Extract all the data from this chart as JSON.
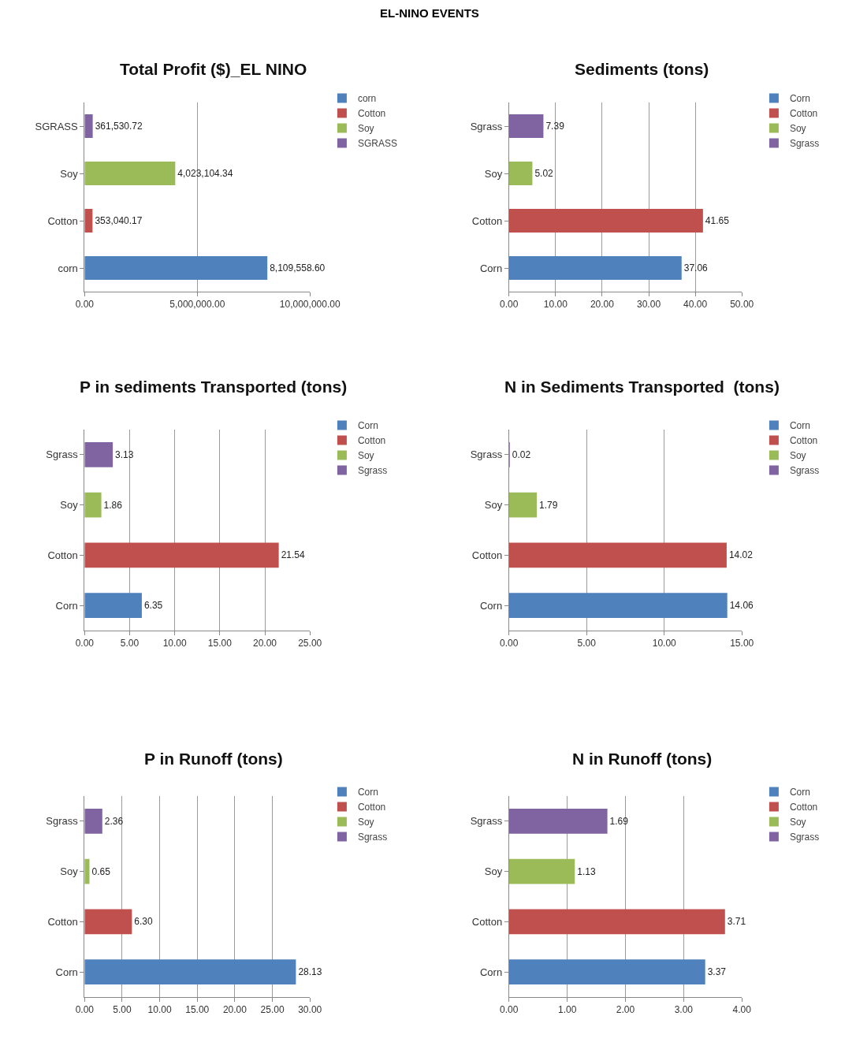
{
  "chart_data": [
    {
      "type": "bar",
      "orientation": "horizontal",
      "title": "Total Profit ($)_EL NINO",
      "annotations": [
        "EL-NINO EVENTS"
      ],
      "categories": [
        "SGRASS",
        "Soy",
        "Cotton",
        "corn"
      ],
      "series": [
        {
          "name": "corn",
          "color": "#4f81bd",
          "values": [
            null,
            null,
            null,
            8109558.6
          ],
          "value_labels": [
            null,
            null,
            null,
            "8,109,558.60"
          ]
        },
        {
          "name": "Cotton",
          "color": "#c0504d",
          "values": [
            null,
            null,
            353040.17,
            null
          ],
          "value_labels": [
            null,
            null,
            "353,040.17",
            null
          ]
        },
        {
          "name": "Soy",
          "color": "#9bbb59",
          "values": [
            null,
            4023104.34,
            null,
            null
          ],
          "value_labels": [
            null,
            "4,023,104.34",
            null,
            null
          ]
        },
        {
          "name": "SGRASS",
          "color": "#8064a2",
          "values": [
            361530.72,
            null,
            null,
            null
          ],
          "value_labels": [
            "361,530.72",
            null,
            null,
            null
          ]
        }
      ],
      "xlim": [
        0,
        10000000
      ],
      "xticks": [
        {
          "value": 0,
          "label": "0.00"
        },
        {
          "value": 5000000,
          "label": "5,000,000.00"
        },
        {
          "value": 10000000,
          "label": "10,000,000.00"
        }
      ],
      "grid": "x",
      "legend": "top right"
    },
    {
      "type": "bar",
      "orientation": "horizontal",
      "title": "Sediments (tons)",
      "categories": [
        "Sgrass",
        "Soy",
        "Cotton",
        "Corn"
      ],
      "series": [
        {
          "name": "Corn",
          "color": "#4f81bd",
          "values": [
            null,
            null,
            null,
            37.06
          ],
          "value_labels": [
            null,
            null,
            null,
            "37.06"
          ]
        },
        {
          "name": "Cotton",
          "color": "#c0504d",
          "values": [
            null,
            null,
            41.65,
            null
          ],
          "value_labels": [
            null,
            null,
            "41.65",
            null
          ]
        },
        {
          "name": "Soy",
          "color": "#9bbb59",
          "values": [
            null,
            5.02,
            null,
            null
          ],
          "value_labels": [
            null,
            "5.02",
            null,
            null
          ]
        },
        {
          "name": "Sgrass",
          "color": "#8064a2",
          "values": [
            7.39,
            null,
            null,
            null
          ],
          "value_labels": [
            "7.39",
            null,
            null,
            null
          ]
        }
      ],
      "xlim": [
        0,
        50
      ],
      "xticks": [
        {
          "value": 0,
          "label": "0.00"
        },
        {
          "value": 10,
          "label": "10.00"
        },
        {
          "value": 20,
          "label": "20.00"
        },
        {
          "value": 30,
          "label": "30.00"
        },
        {
          "value": 40,
          "label": "40.00"
        },
        {
          "value": 50,
          "label": "50.00"
        }
      ],
      "grid": "x",
      "legend": "top right"
    },
    {
      "type": "bar",
      "orientation": "horizontal",
      "title": "P in sediments Transported (tons)",
      "categories": [
        "Sgrass",
        "Soy",
        "Cotton",
        "Corn"
      ],
      "series": [
        {
          "name": "Corn",
          "color": "#4f81bd",
          "values": [
            null,
            null,
            null,
            6.35
          ],
          "value_labels": [
            null,
            null,
            null,
            "6.35"
          ]
        },
        {
          "name": "Cotton",
          "color": "#c0504d",
          "values": [
            null,
            null,
            21.54,
            null
          ],
          "value_labels": [
            null,
            null,
            "21.54",
            null
          ]
        },
        {
          "name": "Soy",
          "color": "#9bbb59",
          "values": [
            null,
            1.86,
            null,
            null
          ],
          "value_labels": [
            null,
            "1.86",
            null,
            null
          ]
        },
        {
          "name": "Sgrass",
          "color": "#8064a2",
          "values": [
            3.13,
            null,
            null,
            null
          ],
          "value_labels": [
            "3.13",
            null,
            null,
            null
          ]
        }
      ],
      "xlim": [
        0,
        25
      ],
      "xticks": [
        {
          "value": 0,
          "label": "0.00"
        },
        {
          "value": 5,
          "label": "5.00"
        },
        {
          "value": 10,
          "label": "10.00"
        },
        {
          "value": 15,
          "label": "15.00"
        },
        {
          "value": 20,
          "label": "20.00"
        },
        {
          "value": 25,
          "label": "25.00"
        }
      ],
      "grid": "x",
      "legend": "top right"
    },
    {
      "type": "bar",
      "orientation": "horizontal",
      "title": "N in Sediments Transported  (tons)",
      "categories": [
        "Sgrass",
        "Soy",
        "Cotton",
        "Corn"
      ],
      "series": [
        {
          "name": "Corn",
          "color": "#4f81bd",
          "values": [
            null,
            null,
            null,
            14.06
          ],
          "value_labels": [
            null,
            null,
            null,
            "14.06"
          ]
        },
        {
          "name": "Cotton",
          "color": "#c0504d",
          "values": [
            null,
            null,
            14.02,
            null
          ],
          "value_labels": [
            null,
            null,
            "14.02",
            null
          ]
        },
        {
          "name": "Soy",
          "color": "#9bbb59",
          "values": [
            null,
            1.79,
            null,
            null
          ],
          "value_labels": [
            null,
            "1.79",
            null,
            null
          ]
        },
        {
          "name": "Sgrass",
          "color": "#8064a2",
          "values": [
            0.02,
            null,
            null,
            null
          ],
          "value_labels": [
            "0.02",
            null,
            null,
            null
          ]
        }
      ],
      "xlim": [
        0,
        15
      ],
      "xticks": [
        {
          "value": 0,
          "label": "0.00"
        },
        {
          "value": 5,
          "label": "5.00"
        },
        {
          "value": 10,
          "label": "10.00"
        },
        {
          "value": 15,
          "label": "15.00"
        }
      ],
      "grid": "x",
      "legend": "top right"
    },
    {
      "type": "bar",
      "orientation": "horizontal",
      "title": "P in Runoff (tons)",
      "categories": [
        "Sgrass",
        "Soy",
        "Cotton",
        "Corn"
      ],
      "series": [
        {
          "name": "Corn",
          "color": "#4f81bd",
          "values": [
            null,
            null,
            null,
            28.13
          ],
          "value_labels": [
            null,
            null,
            null,
            "28.13"
          ]
        },
        {
          "name": "Cotton",
          "color": "#c0504d",
          "values": [
            null,
            null,
            6.3,
            null
          ],
          "value_labels": [
            null,
            null,
            "6.30",
            null
          ]
        },
        {
          "name": "Soy",
          "color": "#9bbb59",
          "values": [
            null,
            0.65,
            null,
            null
          ],
          "value_labels": [
            null,
            "0.65",
            null,
            null
          ]
        },
        {
          "name": "Sgrass",
          "color": "#8064a2",
          "values": [
            2.36,
            null,
            null,
            null
          ],
          "value_labels": [
            "2.36",
            null,
            null,
            null
          ]
        }
      ],
      "xlim": [
        0,
        30
      ],
      "xticks": [
        {
          "value": 0,
          "label": "0.00"
        },
        {
          "value": 5,
          "label": "5.00"
        },
        {
          "value": 10,
          "label": "10.00"
        },
        {
          "value": 15,
          "label": "15.00"
        },
        {
          "value": 20,
          "label": "20.00"
        },
        {
          "value": 25,
          "label": "25.00"
        },
        {
          "value": 30,
          "label": "30.00"
        }
      ],
      "grid": "x",
      "legend": "top right"
    },
    {
      "type": "bar",
      "orientation": "horizontal",
      "title": "N in Runoff (tons)",
      "categories": [
        "Sgrass",
        "Soy",
        "Cotton",
        "Corn"
      ],
      "series": [
        {
          "name": "Corn",
          "color": "#4f81bd",
          "values": [
            null,
            null,
            null,
            3.37
          ],
          "value_labels": [
            null,
            null,
            null,
            "3.37"
          ]
        },
        {
          "name": "Cotton",
          "color": "#c0504d",
          "values": [
            null,
            null,
            3.71,
            null
          ],
          "value_labels": [
            null,
            null,
            "3.71",
            null
          ]
        },
        {
          "name": "Soy",
          "color": "#9bbb59",
          "values": [
            null,
            1.13,
            null,
            null
          ],
          "value_labels": [
            null,
            "1.13",
            null,
            null
          ]
        },
        {
          "name": "Sgrass",
          "color": "#8064a2",
          "values": [
            1.69,
            null,
            null,
            null
          ],
          "value_labels": [
            "1.69",
            null,
            null,
            null
          ]
        }
      ],
      "xlim": [
        0,
        4
      ],
      "xticks": [
        {
          "value": 0,
          "label": "0.00"
        },
        {
          "value": 1,
          "label": "1.00"
        },
        {
          "value": 2,
          "label": "2.00"
        },
        {
          "value": 3,
          "label": "3.00"
        },
        {
          "value": 4,
          "label": "4.00"
        }
      ],
      "grid": "x",
      "legend": "top right"
    }
  ]
}
